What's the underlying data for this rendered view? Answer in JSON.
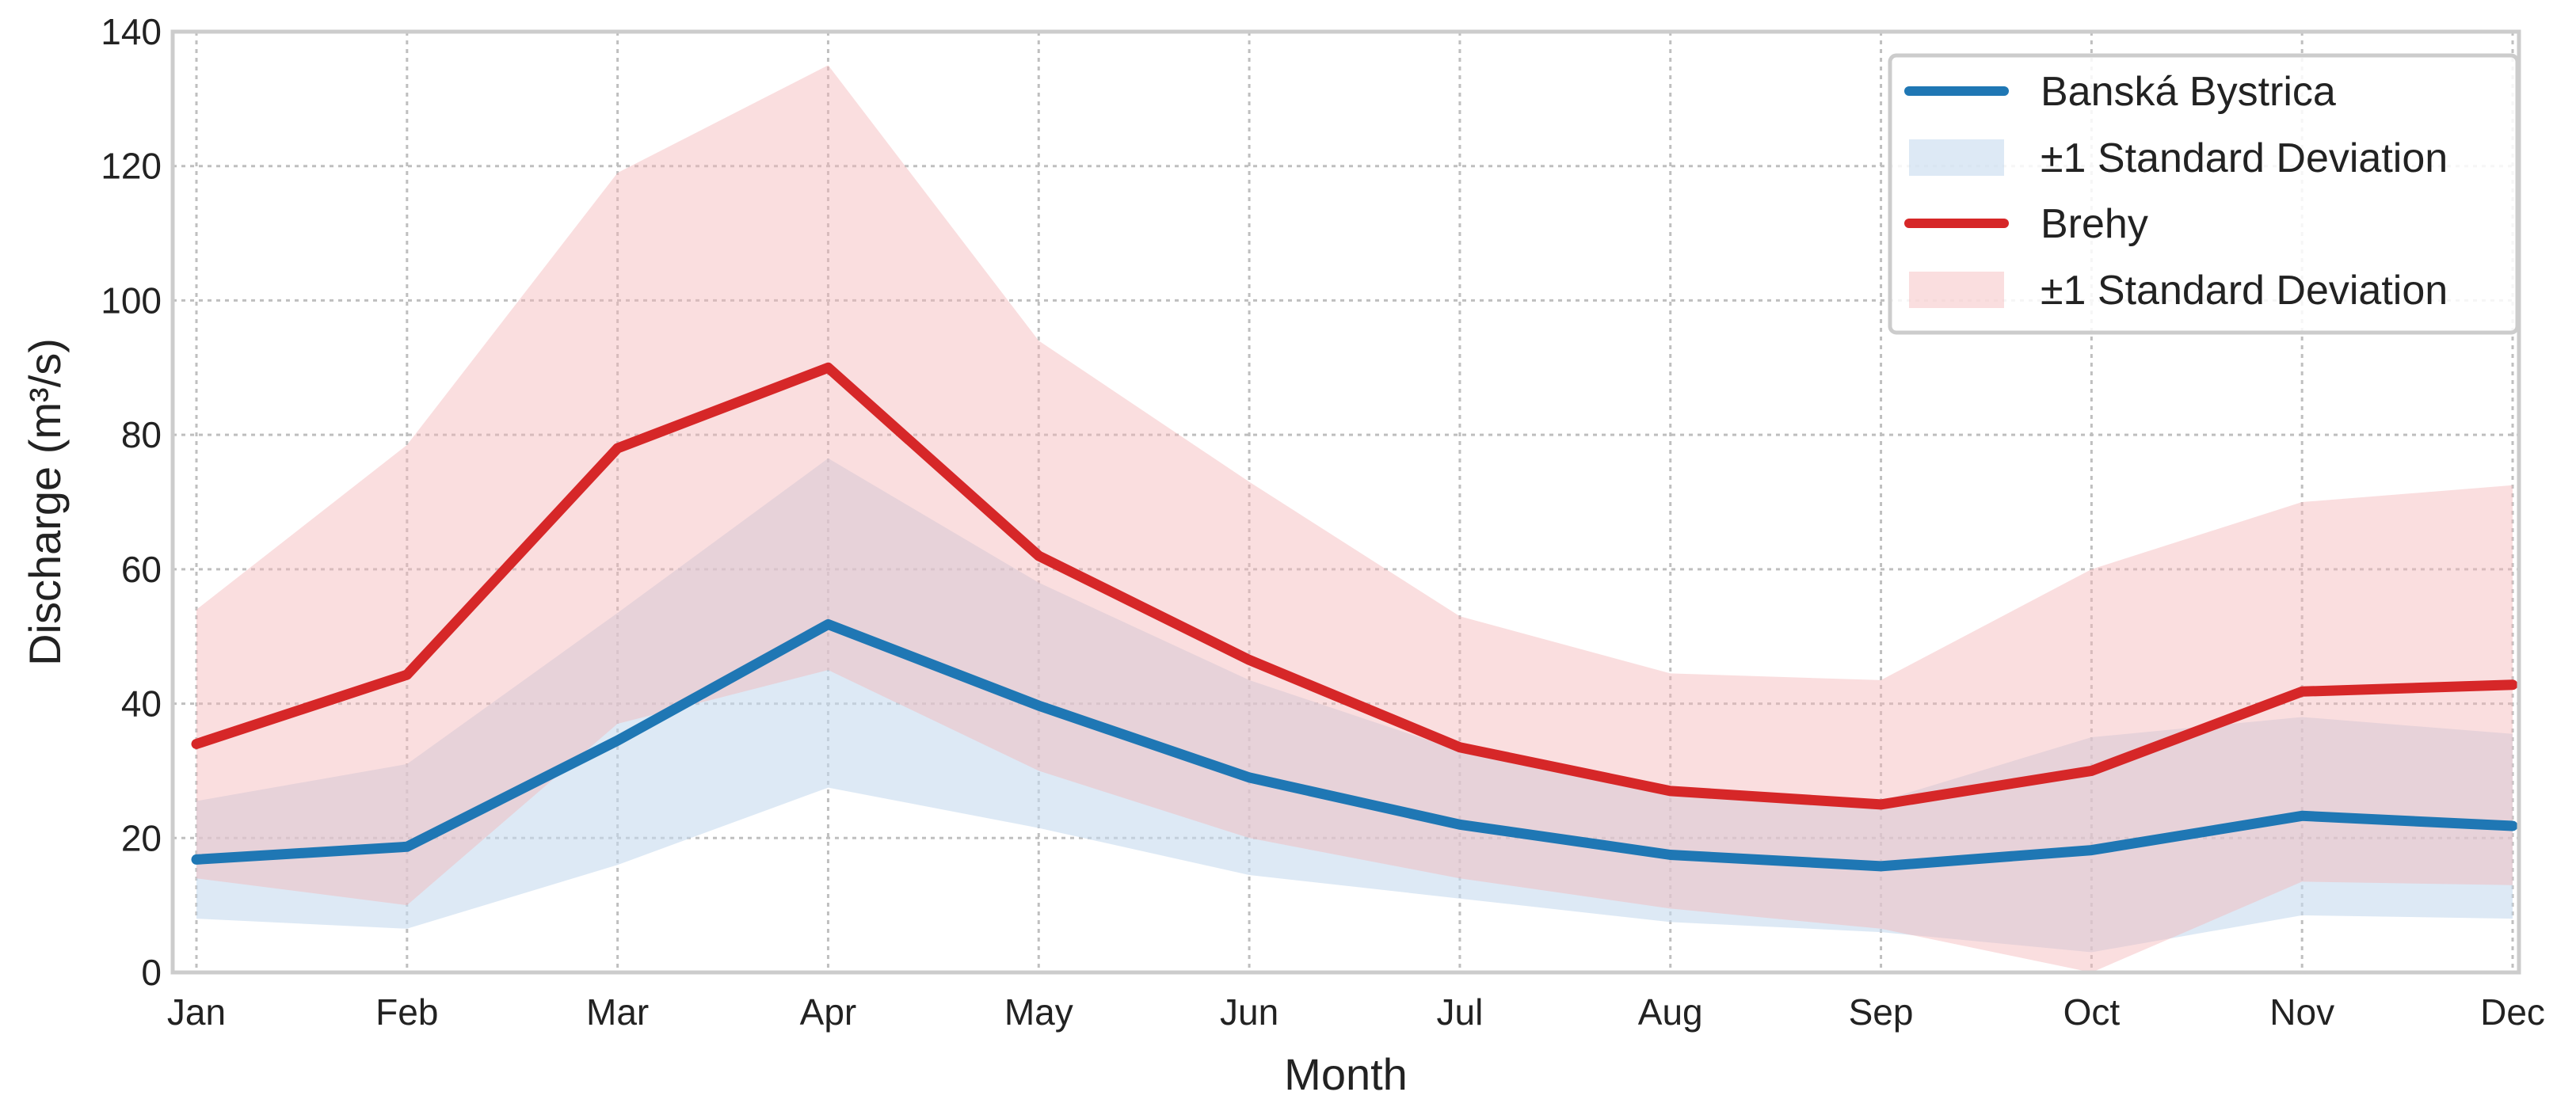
{
  "chart_data": {
    "type": "line",
    "title": "",
    "xlabel": "Month",
    "ylabel": "Discharge (m³/s)",
    "ylim": [
      0,
      140
    ],
    "yticks": [
      0,
      20,
      40,
      60,
      80,
      100,
      120,
      140
    ],
    "grid": true,
    "legend_position": "top-right",
    "categories": [
      "Jan",
      "Feb",
      "Mar",
      "Apr",
      "May",
      "Jun",
      "Jul",
      "Aug",
      "Sep",
      "Oct",
      "Nov",
      "Dec"
    ],
    "series": [
      {
        "name": "Banská Bystrica",
        "color": "#1f77b4",
        "band_color": "#c6dbef",
        "band_label": "±1 Standard Deviation",
        "values": [
          16.8,
          18.7,
          34.5,
          51.8,
          39.7,
          29.0,
          22.0,
          17.5,
          15.8,
          18.2,
          23.3,
          21.8
        ],
        "lower": [
          8.0,
          6.5,
          16.0,
          27.5,
          21.5,
          14.5,
          11.0,
          7.5,
          6.0,
          3.0,
          8.5,
          8.0
        ],
        "upper": [
          25.5,
          31.0,
          53.5,
          76.5,
          58.0,
          43.5,
          33.0,
          27.5,
          25.5,
          35.0,
          38.0,
          35.5
        ]
      },
      {
        "name": "Brehy",
        "color": "#d62728",
        "band_color": "#f4b6b8",
        "band_label": "±1 Standard Deviation",
        "values": [
          34.0,
          44.3,
          78.0,
          90.0,
          62.0,
          46.5,
          33.5,
          27.0,
          25.0,
          30.0,
          41.8,
          42.8
        ],
        "lower": [
          14.0,
          10.0,
          37.0,
          45.0,
          30.0,
          20.0,
          14.0,
          9.5,
          6.5,
          0.0,
          13.5,
          13.0
        ],
        "upper": [
          54.0,
          78.5,
          119.0,
          135.0,
          94.0,
          73.0,
          53.0,
          44.5,
          43.5,
          60.0,
          70.0,
          72.5
        ]
      }
    ]
  }
}
